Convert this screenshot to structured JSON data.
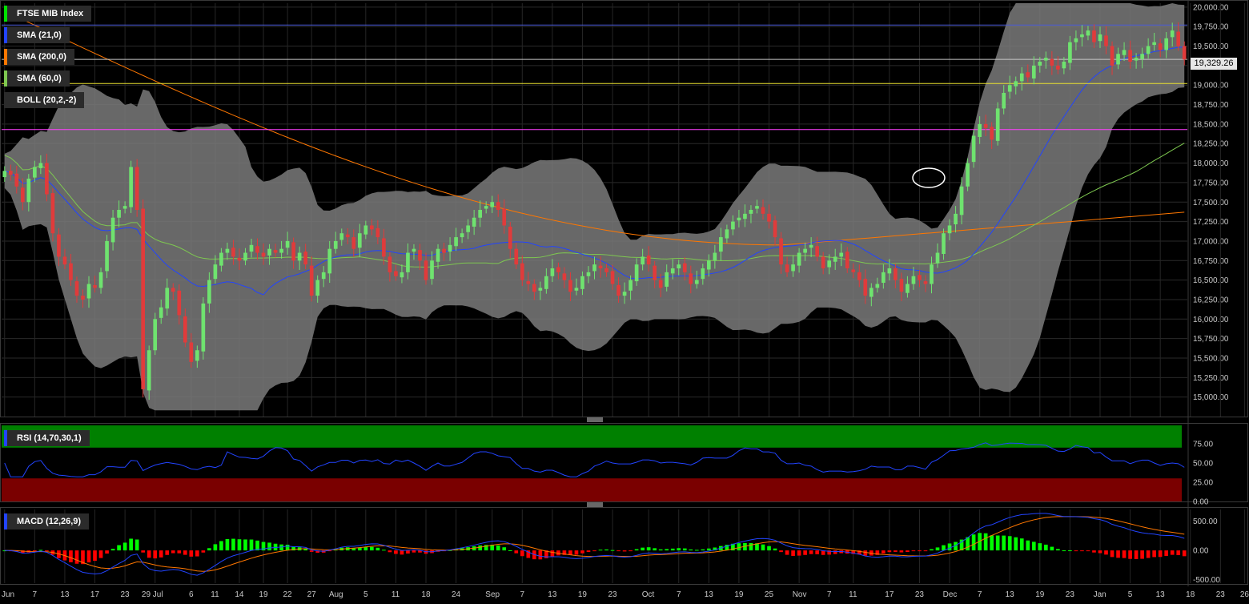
{
  "window": {
    "background": "#000000"
  },
  "legends": {
    "main": [
      {
        "label": "FTSE MIB Index",
        "color": "#00e000"
      },
      {
        "label": "SMA (21,0)",
        "color": "#2244ff"
      },
      {
        "label": "SMA (200,0)",
        "color": "#ff7700"
      },
      {
        "label": "SMA (60,0)",
        "color": "#7ec850"
      },
      {
        "label": "BOLL (20,2,-2)",
        "color": "#2b2b2b"
      }
    ],
    "rsi": {
      "label": "RSI (14,70,30,1)",
      "color": "#2244ff"
    },
    "macd": {
      "label": "MACD (12,26,9)",
      "color": "#2244ff"
    }
  },
  "last_price_label": "19,329.26",
  "chart_data": [
    {
      "type": "candlestick",
      "series_name": "FTSE MIB Index",
      "ylim": [
        14750,
        20050
      ],
      "y_ticks": [
        "15,000.00",
        "15,250.00",
        "15,500.00",
        "15,750.00",
        "16,000.00",
        "16,250.00",
        "16,500.00",
        "16,750.00",
        "17,000.00",
        "17,250.00",
        "17,500.00",
        "17,750.00",
        "18,000.00",
        "18,250.00",
        "18,500.00",
        "18,750.00",
        "19,000.00",
        "19,250.00",
        "19,500.00",
        "19,750.00",
        "20,000.00"
      ],
      "x_ticks": [
        "Jun",
        "7",
        "13",
        "17",
        "23",
        "29 Jul",
        "6",
        "11",
        "14",
        "19",
        "22",
        "27",
        "Aug",
        "5",
        "11",
        "18",
        "24",
        "Sep",
        "7",
        "13",
        "19",
        "23",
        "Oct",
        "7",
        "13",
        "19",
        "25",
        "Nov",
        "7",
        "11",
        "17",
        "23",
        "Dec",
        "7",
        "13",
        "19",
        "23",
        "Jan",
        "5",
        "13",
        "18",
        "23",
        "26"
      ],
      "x_tick_index": [
        0,
        5,
        10,
        15,
        20,
        25,
        31,
        35,
        39,
        43,
        47,
        51,
        55,
        60,
        65,
        70,
        75,
        81,
        86,
        91,
        96,
        101,
        107,
        112,
        117,
        122,
        127,
        132,
        137,
        141,
        147,
        152,
        157,
        162,
        167,
        172,
        177,
        182,
        187,
        192,
        197,
        202,
        206
      ],
      "close": [
        17900,
        17850,
        17700,
        17500,
        17800,
        17950,
        18000,
        17600,
        17100,
        16800,
        16700,
        16500,
        16300,
        16250,
        16450,
        16400,
        16600,
        17000,
        17300,
        17400,
        17450,
        17950,
        17400,
        15100,
        15600,
        16000,
        16150,
        16400,
        16350,
        16050,
        15700,
        15450,
        15600,
        16200,
        16500,
        16700,
        16850,
        16900,
        16800,
        16750,
        16850,
        16950,
        16850,
        16800,
        16900,
        16850,
        16900,
        17000,
        16750,
        16850,
        16700,
        16300,
        16500,
        16600,
        16900,
        17000,
        17100,
        17050,
        16900,
        17100,
        17200,
        17150,
        17050,
        16800,
        16600,
        16550,
        16600,
        16850,
        16900,
        16750,
        16500,
        16750,
        16900,
        16850,
        16950,
        17050,
        17100,
        17200,
        17300,
        17400,
        17450,
        17500,
        17400,
        17200,
        16900,
        16700,
        16500,
        16450,
        16350,
        16400,
        16550,
        16650,
        16600,
        16500,
        16350,
        16400,
        16550,
        16600,
        16700,
        16650,
        16600,
        16450,
        16300,
        16350,
        16500,
        16700,
        16800,
        16700,
        16500,
        16400,
        16600,
        16650,
        16700,
        16600,
        16450,
        16500,
        16650,
        16750,
        16850,
        17050,
        17150,
        17250,
        17300,
        17350,
        17400,
        17450,
        17350,
        17250,
        17050,
        16700,
        16600,
        16700,
        16850,
        16900,
        16950,
        16800,
        16650,
        16750,
        16800,
        16850,
        16650,
        16600,
        16500,
        16300,
        16400,
        16450,
        16600,
        16650,
        16500,
        16350,
        16450,
        16550,
        16500,
        16450,
        16700,
        16850,
        17100,
        17200,
        17350,
        17700,
        18000,
        18350,
        18500,
        18450,
        18300,
        18700,
        18900,
        19000,
        19050,
        19150,
        19100,
        19250,
        19300,
        19350,
        19250,
        19200,
        19300,
        19550,
        19600,
        19650,
        19700,
        19550,
        19650,
        19500,
        19250,
        19400,
        19450,
        19300,
        19350,
        19400,
        19500,
        19550,
        19450,
        19600,
        19700,
        19500,
        19329.26
      ],
      "sma_21_range": [
        16250,
        19600
      ],
      "sma_200_range": [
        16950,
        19950
      ],
      "sma_60_range": [
        16600,
        18250
      ],
      "boll_upper_max": 20050,
      "boll_lower_min": 14830,
      "horizontal_levels": [
        {
          "value": 19770,
          "color": "#4a5ad8"
        },
        {
          "value": 19329.26,
          "color": "#c8c8c8"
        },
        {
          "value": 19020,
          "color": "#e8e030"
        },
        {
          "value": 18430,
          "color": "#ff40ff"
        }
      ]
    },
    {
      "type": "line",
      "series_name": "RSI (14,70,30,1)",
      "ylim": [
        0,
        100
      ],
      "y_ticks": [
        "0.00",
        "25.00",
        "50.00",
        "75.00"
      ],
      "overbought": 70,
      "oversold": 30,
      "overbought_color": "#008000",
      "oversold_color": "#7a0000"
    },
    {
      "type": "bar+line",
      "series_name": "MACD (12,26,9)",
      "ylim": [
        -560,
        700
      ],
      "y_ticks": [
        "500.00",
        "0.00",
        "-500.00"
      ],
      "positive_color": "#00ff00",
      "negative_color": "#ff0000",
      "macd_color": "#2244ff",
      "signal_color": "#ff7700"
    }
  ]
}
